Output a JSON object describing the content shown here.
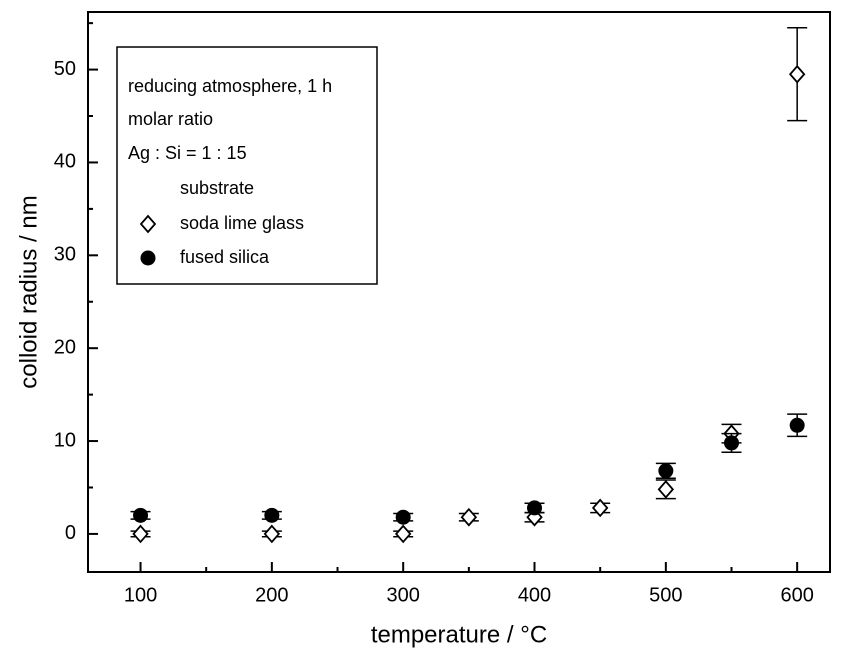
{
  "chart_data": {
    "type": "scatter",
    "xlabel": "temperature / °C",
    "ylabel": "colloid radius / nm",
    "annotations": [
      "reducing atmosphere, 1 h",
      "molar ratio",
      "Ag : Si = 1 : 15",
      "substrate"
    ],
    "xlim": [
      60,
      625
    ],
    "ylim": [
      -4.1,
      56.2
    ],
    "xticks": [
      100,
      200,
      300,
      400,
      500,
      600
    ],
    "yticks": [
      0,
      10,
      20,
      30,
      40,
      50
    ],
    "xminor": [
      150,
      250,
      350,
      450,
      550
    ],
    "yminor": [
      5,
      15,
      25,
      35,
      45,
      55
    ],
    "series": [
      {
        "name": "soda lime glass",
        "marker": "open-diamond",
        "color": "#000000",
        "x": [
          100,
          200,
          300,
          350,
          400,
          450,
          500,
          550,
          600
        ],
        "values": [
          0,
          0,
          0,
          1.8,
          1.8,
          2.8,
          4.8,
          10.8,
          49.5
        ],
        "errors": [
          0.3,
          0.3,
          0.3,
          0.4,
          0.5,
          0.5,
          1,
          1,
          5
        ]
      },
      {
        "name": "fused silica",
        "marker": "filled-circle",
        "color": "#000000",
        "x": [
          100,
          200,
          300,
          400,
          500,
          550,
          600
        ],
        "values": [
          2,
          2,
          1.8,
          2.8,
          6.8,
          9.8,
          11.7
        ],
        "errors": [
          0.4,
          0.4,
          0.4,
          0.5,
          0.8,
          1,
          1.2
        ]
      }
    ]
  }
}
